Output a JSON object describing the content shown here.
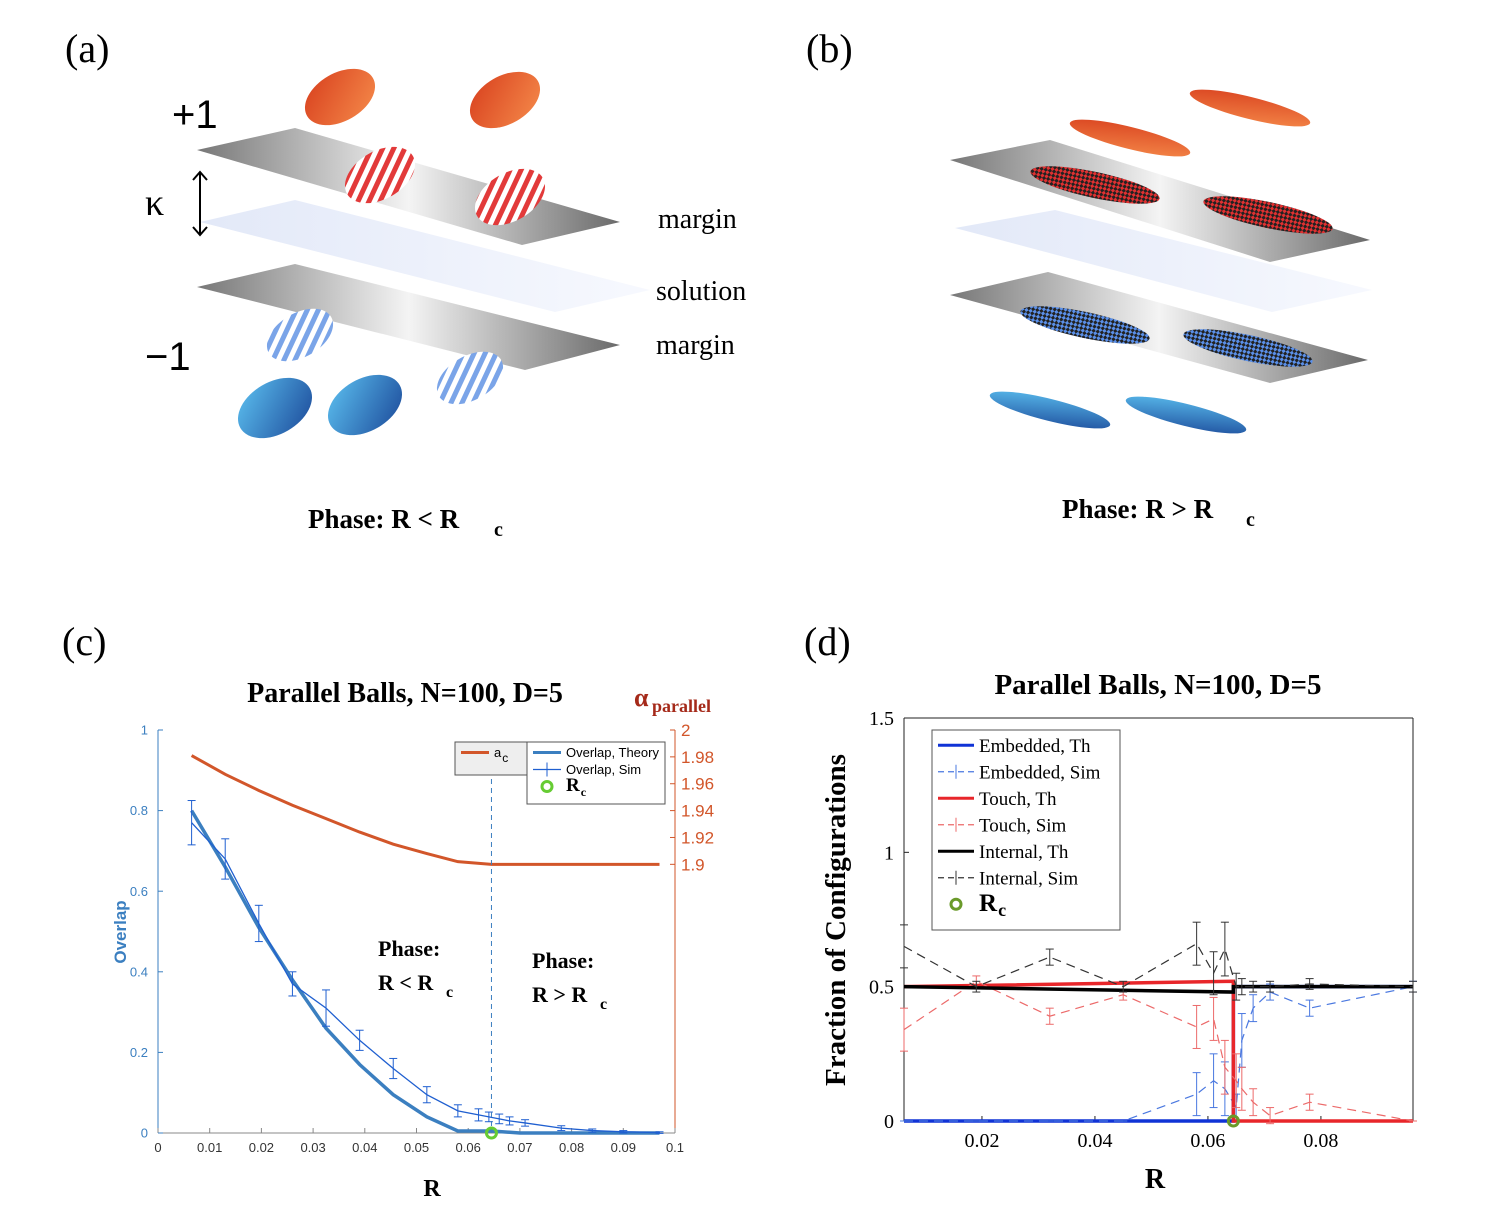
{
  "panels": [
    {
      "label": "(a)",
      "labels": [
        "+1",
        "κ",
        "−1",
        "margin",
        "solution",
        "margin"
      ],
      "caption": "Phase: R < R",
      "caption_sub": "c"
    },
    {
      "label": "(b)",
      "caption": "Phase: R > R",
      "caption_sub": "c"
    }
  ],
  "chart_data": [
    {
      "type": "line",
      "panel_label": "(c)",
      "title": "Parallel Balls, N=100, D=5",
      "xlabel": "R",
      "ylabel": "Overlap",
      "y2label": "α",
      "y2label_sub": "parallel",
      "xlim": [
        0,
        0.1
      ],
      "xticks": [
        0,
        0.01,
        0.02,
        0.03,
        0.04,
        0.05,
        0.06,
        0.07,
        0.08,
        0.09,
        0.1
      ],
      "ylim": [
        0,
        1
      ],
      "yticks": [
        0,
        0.2,
        0.4,
        0.6,
        0.8,
        1
      ],
      "ycolor": "#3b7fc0",
      "y2lim": [
        1.7,
        2
      ],
      "y2ticks": [
        1.9,
        1.92,
        1.94,
        1.96,
        1.98,
        2
      ],
      "y2color": "#d2562a",
      "box": false,
      "annotations": [
        {
          "text": "Phase:",
          "line2": "R < R",
          "sub": "c"
        },
        {
          "text": "Phase:",
          "line2": "R > R",
          "sub": "c"
        }
      ],
      "series": [
        {
          "name": "a",
          "name_sub": "c",
          "color": "#d2562a",
          "axis": "y2",
          "line": "solid",
          "linewidth": 3,
          "x": [
            0.0065,
            0.013,
            0.0195,
            0.026,
            0.0325,
            0.039,
            0.0455,
            0.052,
            0.058,
            0.0645,
            0.07,
            0.08,
            0.09,
            0.097
          ],
          "values": [
            1.981,
            1.967,
            1.955,
            1.944,
            1.934,
            1.924,
            1.915,
            1.908,
            1.902,
            1.9,
            1.9,
            1.9,
            1.9,
            1.9
          ]
        },
        {
          "name": "Overlap, Theory",
          "color": "#3b7fc0",
          "line": "solid",
          "linewidth": 3.5,
          "x": [
            0.0065,
            0.013,
            0.0195,
            0.026,
            0.0325,
            0.039,
            0.0455,
            0.052,
            0.058,
            0.0645,
            0.07,
            0.08,
            0.09,
            0.097
          ],
          "values": [
            0.8,
            0.66,
            0.51,
            0.38,
            0.26,
            0.17,
            0.095,
            0.04,
            0.005,
            0.005,
            0,
            0,
            0,
            0
          ]
        },
        {
          "name": "Overlap, Sim",
          "color": "#1f5fd0",
          "line": "solid",
          "linewidth": 1.3,
          "x": [
            0.0065,
            0.013,
            0.0195,
            0.026,
            0.0325,
            0.039,
            0.0455,
            0.052,
            0.058,
            0.062,
            0.064,
            0.066,
            0.068,
            0.071,
            0.078,
            0.084,
            0.09,
            0.097
          ],
          "values": [
            0.77,
            0.68,
            0.52,
            0.37,
            0.31,
            0.23,
            0.16,
            0.095,
            0.055,
            0.045,
            0.04,
            0.035,
            0.03,
            0.025,
            0.012,
            0.006,
            0.003,
            0.001
          ],
          "errors": [
            0.055,
            0.05,
            0.045,
            0.03,
            0.045,
            0.025,
            0.025,
            0.02,
            0.015,
            0.015,
            0.012,
            0.012,
            0.01,
            0.008,
            0.006,
            0.004,
            0.003,
            0.002
          ]
        },
        {
          "name": "R",
          "name_sub": "c",
          "color": "#66cc33",
          "line": "none",
          "marker": "circle",
          "vline": true,
          "x": [
            0.0645
          ],
          "values": [
            0
          ]
        }
      ]
    },
    {
      "type": "line",
      "panel_label": "(d)",
      "title": "Parallel Balls, N=100, D=5",
      "xlabel": "R",
      "ylabel": "Fraction of Configurations",
      "xlim": [
        0.0062,
        0.0963
      ],
      "xticks": [
        0.02,
        0.04,
        0.06,
        0.08
      ],
      "ylim": [
        0,
        1.5
      ],
      "yticks": [
        0,
        0.5,
        1,
        1.5
      ],
      "box": true,
      "series": [
        {
          "name": "Embedded, Th",
          "color": "#1033d6",
          "line": "solid",
          "linewidth": 3.5,
          "x": [
            0.0062,
            0.0645,
            0.0645,
            0.0963
          ],
          "values": [
            0,
            0,
            0.5,
            0.5
          ]
        },
        {
          "name": "Embedded, Sim",
          "color": "#4a78e0",
          "line": "dashed",
          "linewidth": 1.2,
          "x": [
            0.0062,
            0.019,
            0.032,
            0.045,
            0.058,
            0.061,
            0.063,
            0.065,
            0.066,
            0.068,
            0.071,
            0.078,
            0.0963
          ],
          "values": [
            0,
            0,
            0,
            0,
            0.1,
            0.15,
            0.12,
            0.05,
            0.3,
            0.42,
            0.48,
            0.42,
            0.5
          ],
          "errors": [
            0,
            0,
            0,
            0,
            0.08,
            0.1,
            0.1,
            0.05,
            0.1,
            0.05,
            0.03,
            0.03,
            0.02
          ]
        },
        {
          "name": "Touch, Th",
          "color": "#e8262a",
          "line": "solid",
          "linewidth": 3.5,
          "x": [
            0.0062,
            0.0645,
            0.0645,
            0.0963
          ],
          "values": [
            0.5,
            0.52,
            0,
            0
          ]
        },
        {
          "name": "Touch, Sim",
          "color": "#ec6a6a",
          "line": "dashed",
          "linewidth": 1.2,
          "x": [
            0.0062,
            0.019,
            0.032,
            0.045,
            0.058,
            0.061,
            0.063,
            0.065,
            0.066,
            0.068,
            0.071,
            0.078,
            0.0963
          ],
          "values": [
            0.34,
            0.52,
            0.39,
            0.47,
            0.35,
            0.38,
            0.2,
            0.15,
            0.12,
            0.07,
            0.02,
            0.07,
            0
          ],
          "errors": [
            0.08,
            0.02,
            0.03,
            0.02,
            0.08,
            0.08,
            0.1,
            0.1,
            0.08,
            0.05,
            0.03,
            0.03,
            0
          ]
        },
        {
          "name": "Internal, Th",
          "color": "#000000",
          "line": "solid",
          "linewidth": 3.5,
          "x": [
            0.0062,
            0.0645,
            0.0645,
            0.0963
          ],
          "values": [
            0.5,
            0.48,
            0.5,
            0.5
          ]
        },
        {
          "name": "Internal, Sim",
          "color": "#333333",
          "line": "dashed",
          "linewidth": 1.2,
          "x": [
            0.0062,
            0.019,
            0.032,
            0.045,
            0.058,
            0.061,
            0.063,
            0.065,
            0.066,
            0.068,
            0.071,
            0.078,
            0.0963
          ],
          "values": [
            0.65,
            0.5,
            0.61,
            0.5,
            0.66,
            0.55,
            0.64,
            0.5,
            0.5,
            0.5,
            0.5,
            0.51,
            0.5
          ],
          "errors": [
            0.08,
            0.02,
            0.03,
            0.02,
            0.08,
            0.08,
            0.1,
            0.05,
            0.03,
            0.02,
            0.02,
            0.02,
            0.02
          ]
        },
        {
          "name": "R",
          "name_sub": "c",
          "color": "#6a9a2a",
          "line": "none",
          "marker": "circle",
          "x": [
            0.0645
          ],
          "values": [
            0
          ]
        }
      ]
    }
  ]
}
